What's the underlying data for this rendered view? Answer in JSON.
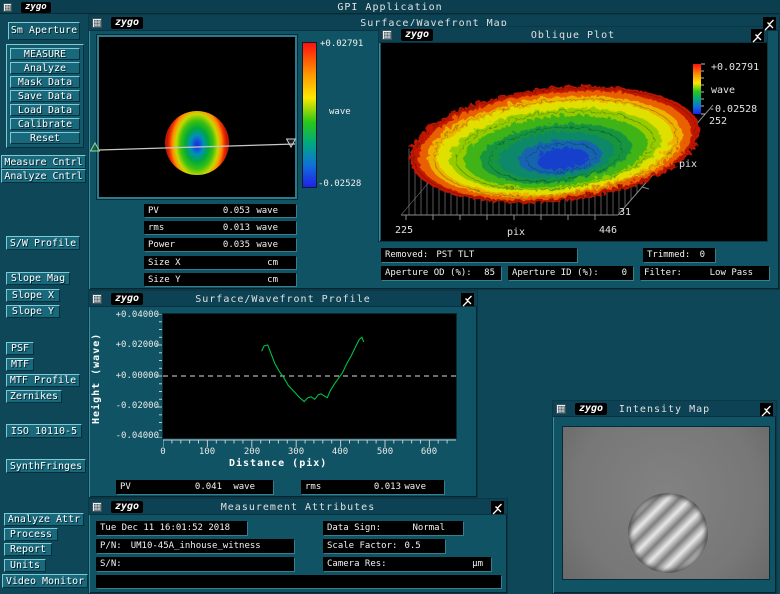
{
  "app": {
    "title": "GPI Application",
    "logo": "zygo"
  },
  "sidebar": {
    "aperture_label": "Sm Aperture",
    "measure": "MEASURE",
    "analyze": "Analyze",
    "mask_data": "Mask Data",
    "save_data": "Save Data",
    "load_data": "Load Data",
    "calibrate": "Calibrate",
    "reset": "Reset",
    "measure_cntrl": "Measure Cntrl",
    "analyze_cntrl": "Analyze Cntrl",
    "sw_profile": "S/W Profile",
    "slope_mag": "Slope Mag",
    "slope_x": "Slope X",
    "slope_y": "Slope Y",
    "psf": "PSF",
    "mtf": "MTF",
    "mtf_profile": "MTF Profile",
    "zernikes": "Zernikes",
    "iso": "ISO 10110-5",
    "synth": "SynthFringes",
    "analyze_attr": "Analyze Attr",
    "process": "Process",
    "report": "Report",
    "units": "Units",
    "video_monitor": "Video Monitor"
  },
  "map_window": {
    "title": "Surface/Wavefront Map",
    "logo": "zygo",
    "colorbar": {
      "max": "+0.02791",
      "units": "wave",
      "min": "-0.02528"
    },
    "stats": [
      {
        "label": "PV",
        "value": "0.053",
        "unit": "wave"
      },
      {
        "label": "rms",
        "value": "0.013",
        "unit": "wave"
      },
      {
        "label": "Power",
        "value": "0.035",
        "unit": "wave"
      },
      {
        "label": "Size X",
        "value": "",
        "unit": "cm"
      },
      {
        "label": "Size Y",
        "value": "",
        "unit": "cm"
      }
    ],
    "removed": {
      "label": "Removed:",
      "value": "PST TLT"
    },
    "trimmed": {
      "label": "Trimmed:",
      "value": "0"
    },
    "aperture_od": {
      "label": "Aperture OD (%):",
      "value": "85"
    },
    "aperture_id": {
      "label": "Aperture ID (%):",
      "value": "0"
    },
    "filter": {
      "label": "Filter:",
      "value": "Low Pass"
    }
  },
  "oblique_window": {
    "title": "Oblique Plot",
    "logo": "zygo",
    "colorbar": {
      "max": "+0.02791",
      "units": "wave",
      "min": "-0.02528"
    },
    "x_axis": {
      "min": "225",
      "label": "pix",
      "max": "446"
    },
    "depth_axis": {
      "min": "31",
      "label": "pix",
      "max": "252"
    }
  },
  "profile_window": {
    "title": "Surface/Wavefront Profile",
    "logo": "zygo",
    "ylabel": "Height (wave)",
    "xlabel": "Distance (pix)",
    "y_ticks": [
      "+0.04000",
      "+0.02000",
      "+0.00000",
      "-0.02000",
      "-0.04000"
    ],
    "x_ticks": [
      "0",
      "100",
      "200",
      "300",
      "400",
      "500",
      "600"
    ],
    "pv": {
      "label": "PV",
      "value": "0.041",
      "unit": "wave"
    },
    "rms": {
      "label": "rms",
      "value": "0.013",
      "unit": "wave"
    }
  },
  "attrs_window": {
    "title": "Measurement Attributes",
    "logo": "zygo",
    "date": "Tue Dec 11 16:01:52 2018",
    "data_sign": {
      "label": "Data Sign:",
      "value": "Normal"
    },
    "pn": {
      "label": "P/N:",
      "value": "UM10-45A_inhouse_witness"
    },
    "scale_factor": {
      "label": "Scale Factor:",
      "value": "0.5"
    },
    "sn": {
      "label": "S/N:",
      "value": ""
    },
    "camera_res": {
      "label": "Camera Res:",
      "value": "",
      "unit": "µm"
    }
  },
  "intensity_window": {
    "title": "Intensity Map",
    "logo": "zygo"
  },
  "colors": {
    "desktop": "#0e4858",
    "titlebar": "#0c4253",
    "button": "#19697c",
    "field_bg": "#000000",
    "text": "#f2f2f2",
    "profile_line": "#00c040"
  },
  "chart_data": [
    {
      "type": "heatmap",
      "name": "surface_wavefront_map",
      "units": "wave",
      "zmax": 0.02791,
      "zmin": -0.02528,
      "pv": 0.053,
      "rms": 0.013,
      "power": 0.035,
      "description": "Circular phase map: red/orange rim at left and right edges, green ring, blue center; horizontal slice cursor across middle"
    },
    {
      "type": "area",
      "name": "oblique_plot_3d_surface",
      "units": "wave",
      "zmax": 0.02791,
      "zmin": -0.02528,
      "x_range": [
        225,
        446
      ],
      "depth_range": [
        31,
        252
      ],
      "x_label": "pix",
      "depth_label": "pix",
      "description": "Bowl-shaped 3D wireframe surface: red rim, yellow/green slopes, blue bottom, gray skirt and base grid"
    },
    {
      "type": "line",
      "name": "surface_wavefront_profile",
      "xlabel": "Distance (pix)",
      "ylabel": "Height (wave)",
      "xlim": [
        0,
        660
      ],
      "ylim": [
        -0.04,
        0.04
      ],
      "x_ticks": [
        0,
        100,
        200,
        300,
        400,
        500,
        600
      ],
      "zero_line": true,
      "line_color": "#00c040",
      "points": [
        [
          222,
          0.016
        ],
        [
          228,
          0.0195
        ],
        [
          236,
          0.02
        ],
        [
          244,
          0.014
        ],
        [
          252,
          0.008
        ],
        [
          262,
          0.003
        ],
        [
          272,
          -0.001
        ],
        [
          282,
          -0.006
        ],
        [
          295,
          -0.01
        ],
        [
          308,
          -0.014
        ],
        [
          318,
          -0.0165
        ],
        [
          326,
          -0.014
        ],
        [
          334,
          -0.0135
        ],
        [
          342,
          -0.015
        ],
        [
          350,
          -0.012
        ],
        [
          356,
          -0.0115
        ],
        [
          364,
          -0.013
        ],
        [
          370,
          -0.014
        ],
        [
          376,
          -0.01
        ],
        [
          384,
          -0.006
        ],
        [
          394,
          -0.002
        ],
        [
          404,
          0.002
        ],
        [
          414,
          0.008
        ],
        [
          424,
          0.013
        ],
        [
          434,
          0.019
        ],
        [
          442,
          0.0235
        ],
        [
          448,
          0.025
        ],
        [
          452,
          0.022
        ]
      ]
    }
  ]
}
